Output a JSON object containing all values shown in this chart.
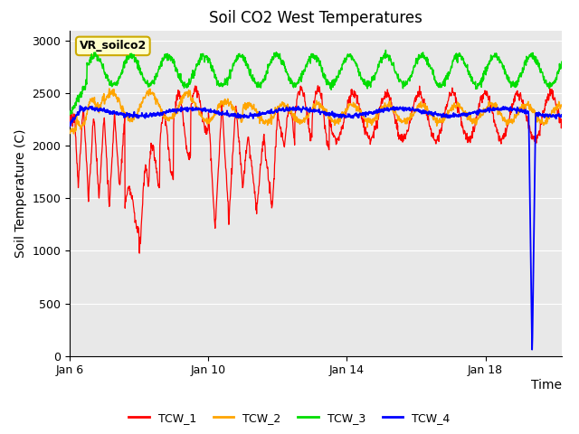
{
  "title": "Soil CO2 West Temperatures",
  "xlabel": "Time",
  "ylabel": "Soil Temperature (C)",
  "ylim": [
    0,
    3100
  ],
  "yticks": [
    0,
    500,
    1000,
    1500,
    2000,
    2500,
    3000
  ],
  "x_tick_labels": [
    "Jan 6",
    "Jan 10",
    "Jan 14",
    "Jan 18"
  ],
  "x_tick_positions": [
    0,
    4,
    8,
    12
  ],
  "xlim": [
    0,
    14.2
  ],
  "colors": {
    "TCW_1": "#ff0000",
    "TCW_2": "#ffa500",
    "TCW_3": "#00dd00",
    "TCW_4": "#0000ff"
  },
  "legend_label": "VR_soilco2",
  "background_color": "#e8e8e8",
  "title_fontsize": 12,
  "axis_label_fontsize": 10,
  "tick_fontsize": 9
}
